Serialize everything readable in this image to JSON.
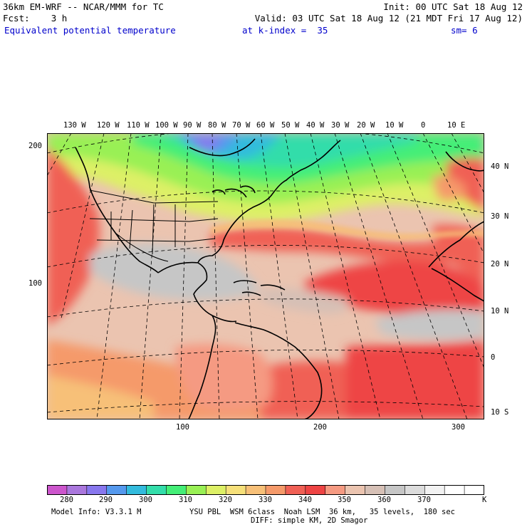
{
  "header": {
    "line1_left": "36km EM-WRF -- NCAR/MMM for TC",
    "line1_right": "Init: 00 UTC Sat 18 Aug 12",
    "line2_left": "Fcst:    3 h",
    "line2_right": "Valid: 03 UTC Sat 18 Aug 12 (21 MDT Fri 17 Aug 12)",
    "field_name": "Equivalent potential temperature",
    "level": "at k-index =  35",
    "smoothing": "sm= 6",
    "field_color": "#0000cc"
  },
  "map": {
    "top_lon_labels": [
      "130 W",
      "120 W",
      "110 W",
      "100 W",
      "90 W",
      "80 W",
      "70 W",
      "60 W",
      "50 W",
      "40 W",
      "30 W",
      "20 W",
      "10 W",
      "0",
      "10 E"
    ],
    "right_lat_labels": [
      "40 N",
      "30 N",
      "20 N",
      "10 N",
      "0",
      "10 S"
    ],
    "left_grid_labels": [
      "200",
      "100"
    ],
    "bottom_grid_labels": [
      "100",
      "200",
      "300"
    ]
  },
  "colorbar": {
    "colors": [
      "#cc55cc",
      "#aa77dd",
      "#8877ee",
      "#5599ee",
      "#33bbdd",
      "#33ddaa",
      "#44ee77",
      "#99f055",
      "#ddf066",
      "#f6e07a",
      "#f7c078",
      "#f59a6a",
      "#f06055",
      "#ee4444",
      "#f59a82",
      "#ebc4b0",
      "#d6c0b6",
      "#c6c6c6",
      "#dcdcdc",
      "#f2f2f2",
      "#ffffff",
      "#ffffff"
    ],
    "tick_labels": [
      "280",
      "290",
      "300",
      "310",
      "320",
      "330",
      "340",
      "350",
      "360",
      "370"
    ],
    "unit": "K"
  },
  "footer": {
    "model_info": "Model Info: V3.3.1 M",
    "physics": "YSU PBL  WSM 6class  Noah LSM  36 km,   35 levels,  180 sec",
    "diffusion": "DIFF: simple KM, 2D Smagor"
  }
}
